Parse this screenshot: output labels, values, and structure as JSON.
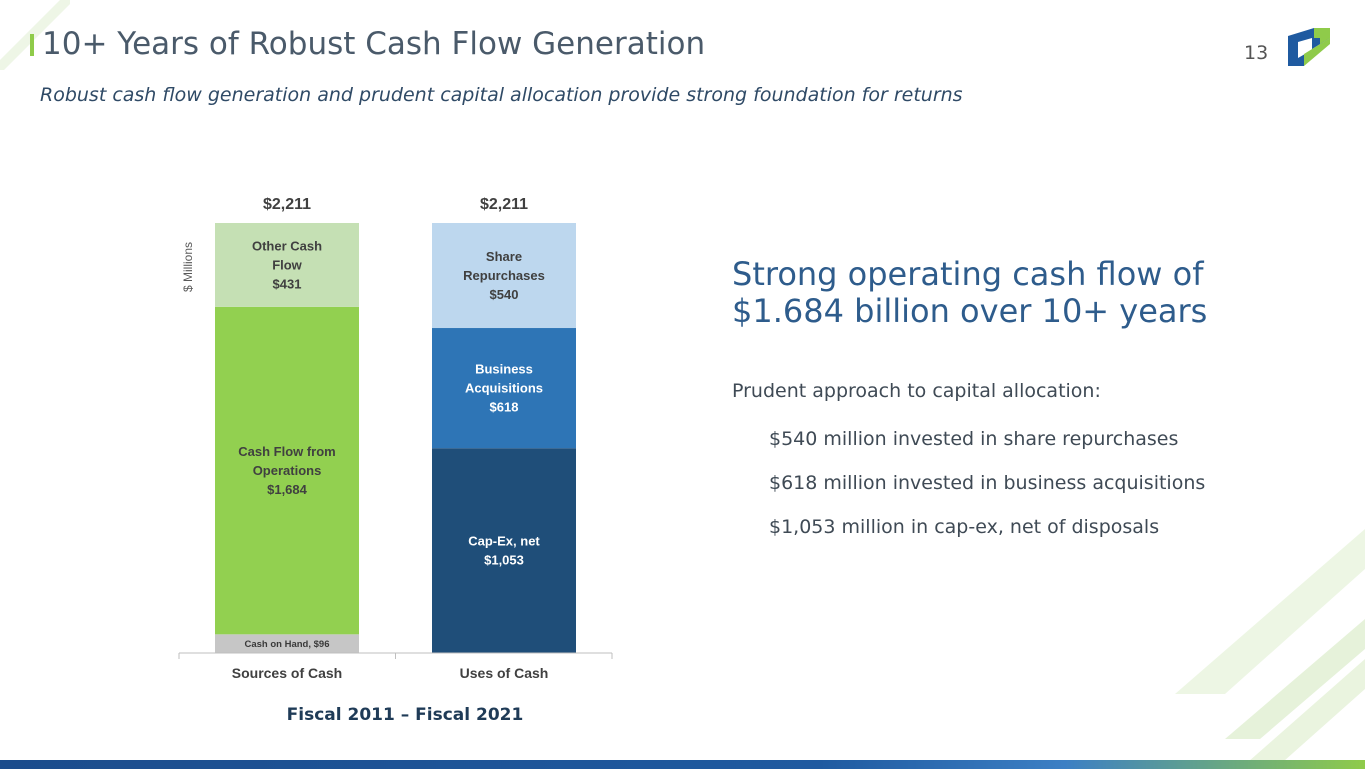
{
  "slide": {
    "title": "10+ Years of Robust Cash Flow Generation",
    "subtitle": "Robust cash flow generation and prudent capital allocation provide strong foundation for returns",
    "page_number": "13"
  },
  "chart_data": {
    "type": "bar",
    "stacked": true,
    "ylabel": "$ Millions",
    "caption": "Fiscal 2011 – Fiscal 2021",
    "categories": [
      "Sources of Cash",
      "Uses of Cash"
    ],
    "totals": [
      "$2,211",
      "$2,211"
    ],
    "total_values": [
      2211,
      2211
    ],
    "ylim": [
      0,
      2211
    ],
    "grid": false,
    "legend": "none",
    "stacks": [
      {
        "category": "Sources of Cash",
        "segments": [
          {
            "label": "Cash on Hand, $96",
            "value": 96,
            "color": "#c6c6c6",
            "text_color": "#3a3a3a",
            "label_lines": [
              "Cash on Hand, $96"
            ],
            "small": true
          },
          {
            "label": "Cash Flow from Operations $1,684",
            "value": 1684,
            "color": "#92d050",
            "text_color": "#404040",
            "label_lines": [
              "Cash Flow from",
              "Operations",
              "$1,684"
            ]
          },
          {
            "label": "Other Cash Flow $431",
            "value": 431,
            "color": "#c5e0b4",
            "text_color": "#404040",
            "label_lines": [
              "Other Cash",
              "Flow",
              "$431"
            ]
          }
        ]
      },
      {
        "category": "Uses of Cash",
        "segments": [
          {
            "label": "Cap-Ex, net $1,053",
            "value": 1053,
            "color": "#1f4e79",
            "text_color": "#ffffff",
            "label_lines": [
              "Cap-Ex, net",
              "$1,053"
            ]
          },
          {
            "label": "Business Acquisitions $618",
            "value": 618,
            "color": "#2e75b6",
            "text_color": "#ffffff",
            "label_lines": [
              "Business",
              "Acquisitions",
              "$618"
            ]
          },
          {
            "label": "Share Repurchases $540",
            "value": 540,
            "color": "#bdd7ee",
            "text_color": "#404040",
            "label_lines": [
              "Share",
              "Repurchases",
              "$540"
            ]
          }
        ]
      }
    ]
  },
  "callout": {
    "heading_line1": "Strong operating cash flow of",
    "heading_line2": "$1.684 billion over 10+ years",
    "lead": "Prudent approach to capital allocation:",
    "items": [
      "$540 million invested in share repurchases",
      "$618 million invested in business acquisitions",
      "$1,053 million in cap-ex, net of disposals"
    ]
  },
  "colors": {
    "accent_green": "#8fcb4a",
    "title_gray": "#4a5a6a",
    "heading_blue": "#2e5c8c",
    "footer_blue": "#1b4c8c"
  },
  "icons": {
    "logo": "company-logo-icon"
  }
}
